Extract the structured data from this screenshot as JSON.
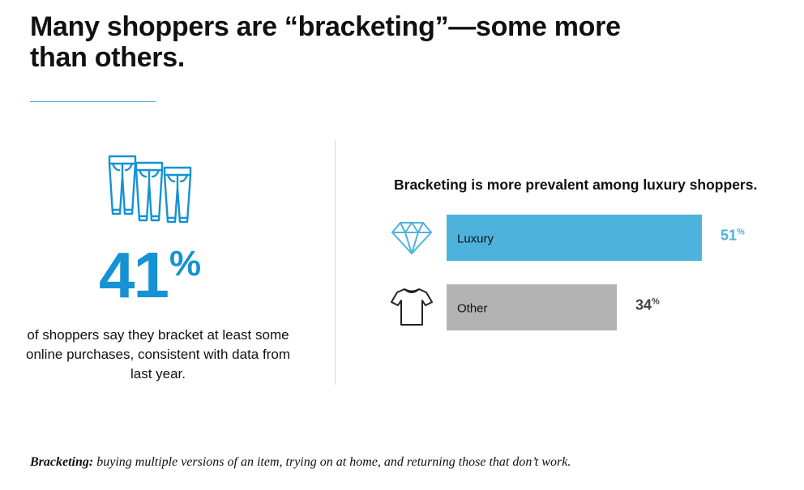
{
  "title": {
    "line1": "Many shoppers are “bracketing”—some more",
    "line2": "than others."
  },
  "stat": {
    "value": "41",
    "unit": "%",
    "description": "of shoppers say they bracket at least some online purchases, consistent with data from last year.",
    "icon": "jeans-icon"
  },
  "colors": {
    "accent": "#1592d3",
    "luxury": "#4db3dd",
    "other": "#b3b3b3",
    "rule": "#4db3dd"
  },
  "chart_data": {
    "type": "bar",
    "orientation": "horizontal",
    "title": "Bracketing is more prevalent among luxury shoppers.",
    "categories": [
      "Luxury",
      "Other"
    ],
    "values": [
      51,
      34
    ],
    "value_labels": [
      "51",
      "34"
    ],
    "unit": "%",
    "icons": [
      "diamond-icon",
      "tshirt-icon"
    ],
    "bar_colors": [
      "#4db3dd",
      "#b3b3b3"
    ],
    "value_label_colors": [
      "#4db3dd",
      "#444444"
    ],
    "xlim": [
      0,
      51
    ],
    "grid": false
  },
  "footnote": {
    "term": "Bracketing:",
    "definition": " buying multiple versions of an item, trying on at home, and returning those that don’t work."
  }
}
